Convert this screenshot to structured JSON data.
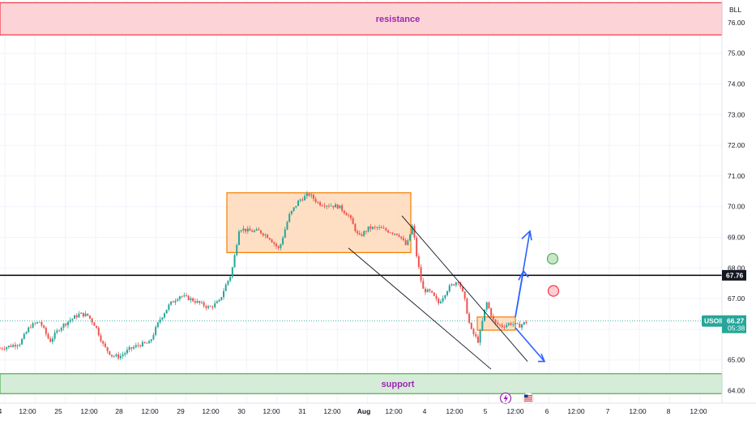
{
  "chart_data": {
    "type": "candlestick",
    "symbol": "USOIL",
    "price_scale_unit": "BLL",
    "last_price": "66.27",
    "countdown": "05:38",
    "level_price": "67.76",
    "ylim": [
      63.8,
      76.5
    ],
    "y_ticks": [
      "64.00",
      "65.00",
      "66.00",
      "67.00",
      "68.00",
      "69.00",
      "70.00",
      "71.00",
      "72.00",
      "73.00",
      "74.00",
      "75.00",
      "76.00"
    ],
    "x_ticks": [
      "4",
      "12:00",
      "25",
      "12:00",
      "28",
      "12:00",
      "29",
      "12:00",
      "30",
      "12:00",
      "31",
      "12:00",
      "Aug",
      "12:00",
      "4",
      "12:00",
      "5",
      "12:00",
      "6",
      "12:00",
      "7",
      "12:00",
      "8",
      "12:00"
    ],
    "zones": [
      {
        "label": "resistance",
        "from": 75.6,
        "to": 76.65,
        "color": "#f23645"
      },
      {
        "label": "support",
        "from": 63.9,
        "to": 64.55,
        "color": "#4caf50"
      }
    ],
    "horizontal_level": 67.76,
    "consolidation_boxes": [
      {
        "from_session": "29 pm",
        "to_session": "Aug pm",
        "low": 68.5,
        "high": 70.45
      },
      {
        "from_session": "5 am",
        "to_session": "5 pm",
        "low": 65.97,
        "high": 66.4
      }
    ],
    "channel": "descending",
    "projections": [
      "bullish to ~69.2",
      "bullish to ~67.9",
      "bearish to ~64.95"
    ],
    "markers": [
      {
        "type": "target",
        "color": "#4caf50",
        "price": 68.3
      },
      {
        "type": "stop",
        "color": "#f23645",
        "price": 67.25
      }
    ],
    "price_path": [
      {
        "t": 0,
        "v": 65.38
      },
      {
        "t": 0.5,
        "v": 65.45
      },
      {
        "t": 1,
        "v": 65.55
      },
      {
        "t": 1.5,
        "v": 66.1
      },
      {
        "t": 2,
        "v": 66.25
      },
      {
        "t": 2.5,
        "v": 65.6
      },
      {
        "t": 3,
        "v": 66.05
      },
      {
        "t": 3.5,
        "v": 66.3
      },
      {
        "t": 4,
        "v": 66.5
      },
      {
        "t": 4.4,
        "v": 66.45
      },
      {
        "t": 4.8,
        "v": 66.1
      },
      {
        "t": 5.2,
        "v": 65.45
      },
      {
        "t": 5.6,
        "v": 65.15
      },
      {
        "t": 6,
        "v": 65.1
      },
      {
        "t": 6.5,
        "v": 65.35
      },
      {
        "t": 7,
        "v": 65.5
      },
      {
        "t": 7.5,
        "v": 65.55
      },
      {
        "t": 8,
        "v": 66.3
      },
      {
        "t": 8.5,
        "v": 66.8
      },
      {
        "t": 9,
        "v": 67.1
      },
      {
        "t": 9.5,
        "v": 67.0
      },
      {
        "t": 10,
        "v": 66.85
      },
      {
        "t": 10.5,
        "v": 66.7
      },
      {
        "t": 11,
        "v": 66.9
      },
      {
        "t": 11.3,
        "v": 67.4
      },
      {
        "t": 11.6,
        "v": 67.8
      },
      {
        "t": 11.8,
        "v": 68.5
      },
      {
        "t": 12,
        "v": 69.3
      },
      {
        "t": 12.5,
        "v": 69.2
      },
      {
        "t": 13,
        "v": 69.2
      },
      {
        "t": 13.5,
        "v": 69.0
      },
      {
        "t": 14,
        "v": 68.6
      },
      {
        "t": 14.5,
        "v": 69.7
      },
      {
        "t": 15,
        "v": 70.2
      },
      {
        "t": 15.5,
        "v": 70.4
      },
      {
        "t": 16,
        "v": 70.1
      },
      {
        "t": 16.5,
        "v": 70.05
      },
      {
        "t": 17,
        "v": 70.0
      },
      {
        "t": 17.5,
        "v": 69.7
      },
      {
        "t": 18,
        "v": 69.0
      },
      {
        "t": 18.5,
        "v": 69.3
      },
      {
        "t": 19,
        "v": 69.3
      },
      {
        "t": 19.5,
        "v": 69.2
      },
      {
        "t": 20,
        "v": 69.1
      },
      {
        "t": 20.4,
        "v": 68.7
      },
      {
        "t": 20.7,
        "v": 69.4
      },
      {
        "t": 20.9,
        "v": 68.4
      },
      {
        "t": 21.2,
        "v": 67.3
      },
      {
        "t": 21.6,
        "v": 67.2
      },
      {
        "t": 22,
        "v": 66.85
      },
      {
        "t": 22.5,
        "v": 67.35
      },
      {
        "t": 23,
        "v": 67.6
      },
      {
        "t": 23.3,
        "v": 67.0
      },
      {
        "t": 23.6,
        "v": 66.0
      },
      {
        "t": 24,
        "v": 65.6
      },
      {
        "t": 24.4,
        "v": 66.9
      },
      {
        "t": 24.8,
        "v": 66.2
      },
      {
        "t": 25.2,
        "v": 66.1
      },
      {
        "t": 25.6,
        "v": 66.2
      },
      {
        "t": 26,
        "v": 66.1
      },
      {
        "t": 26.5,
        "v": 66.27
      }
    ]
  },
  "icons": {
    "event_icon": "lightning-event-icon",
    "flag_icon": "us-flag-icon"
  }
}
